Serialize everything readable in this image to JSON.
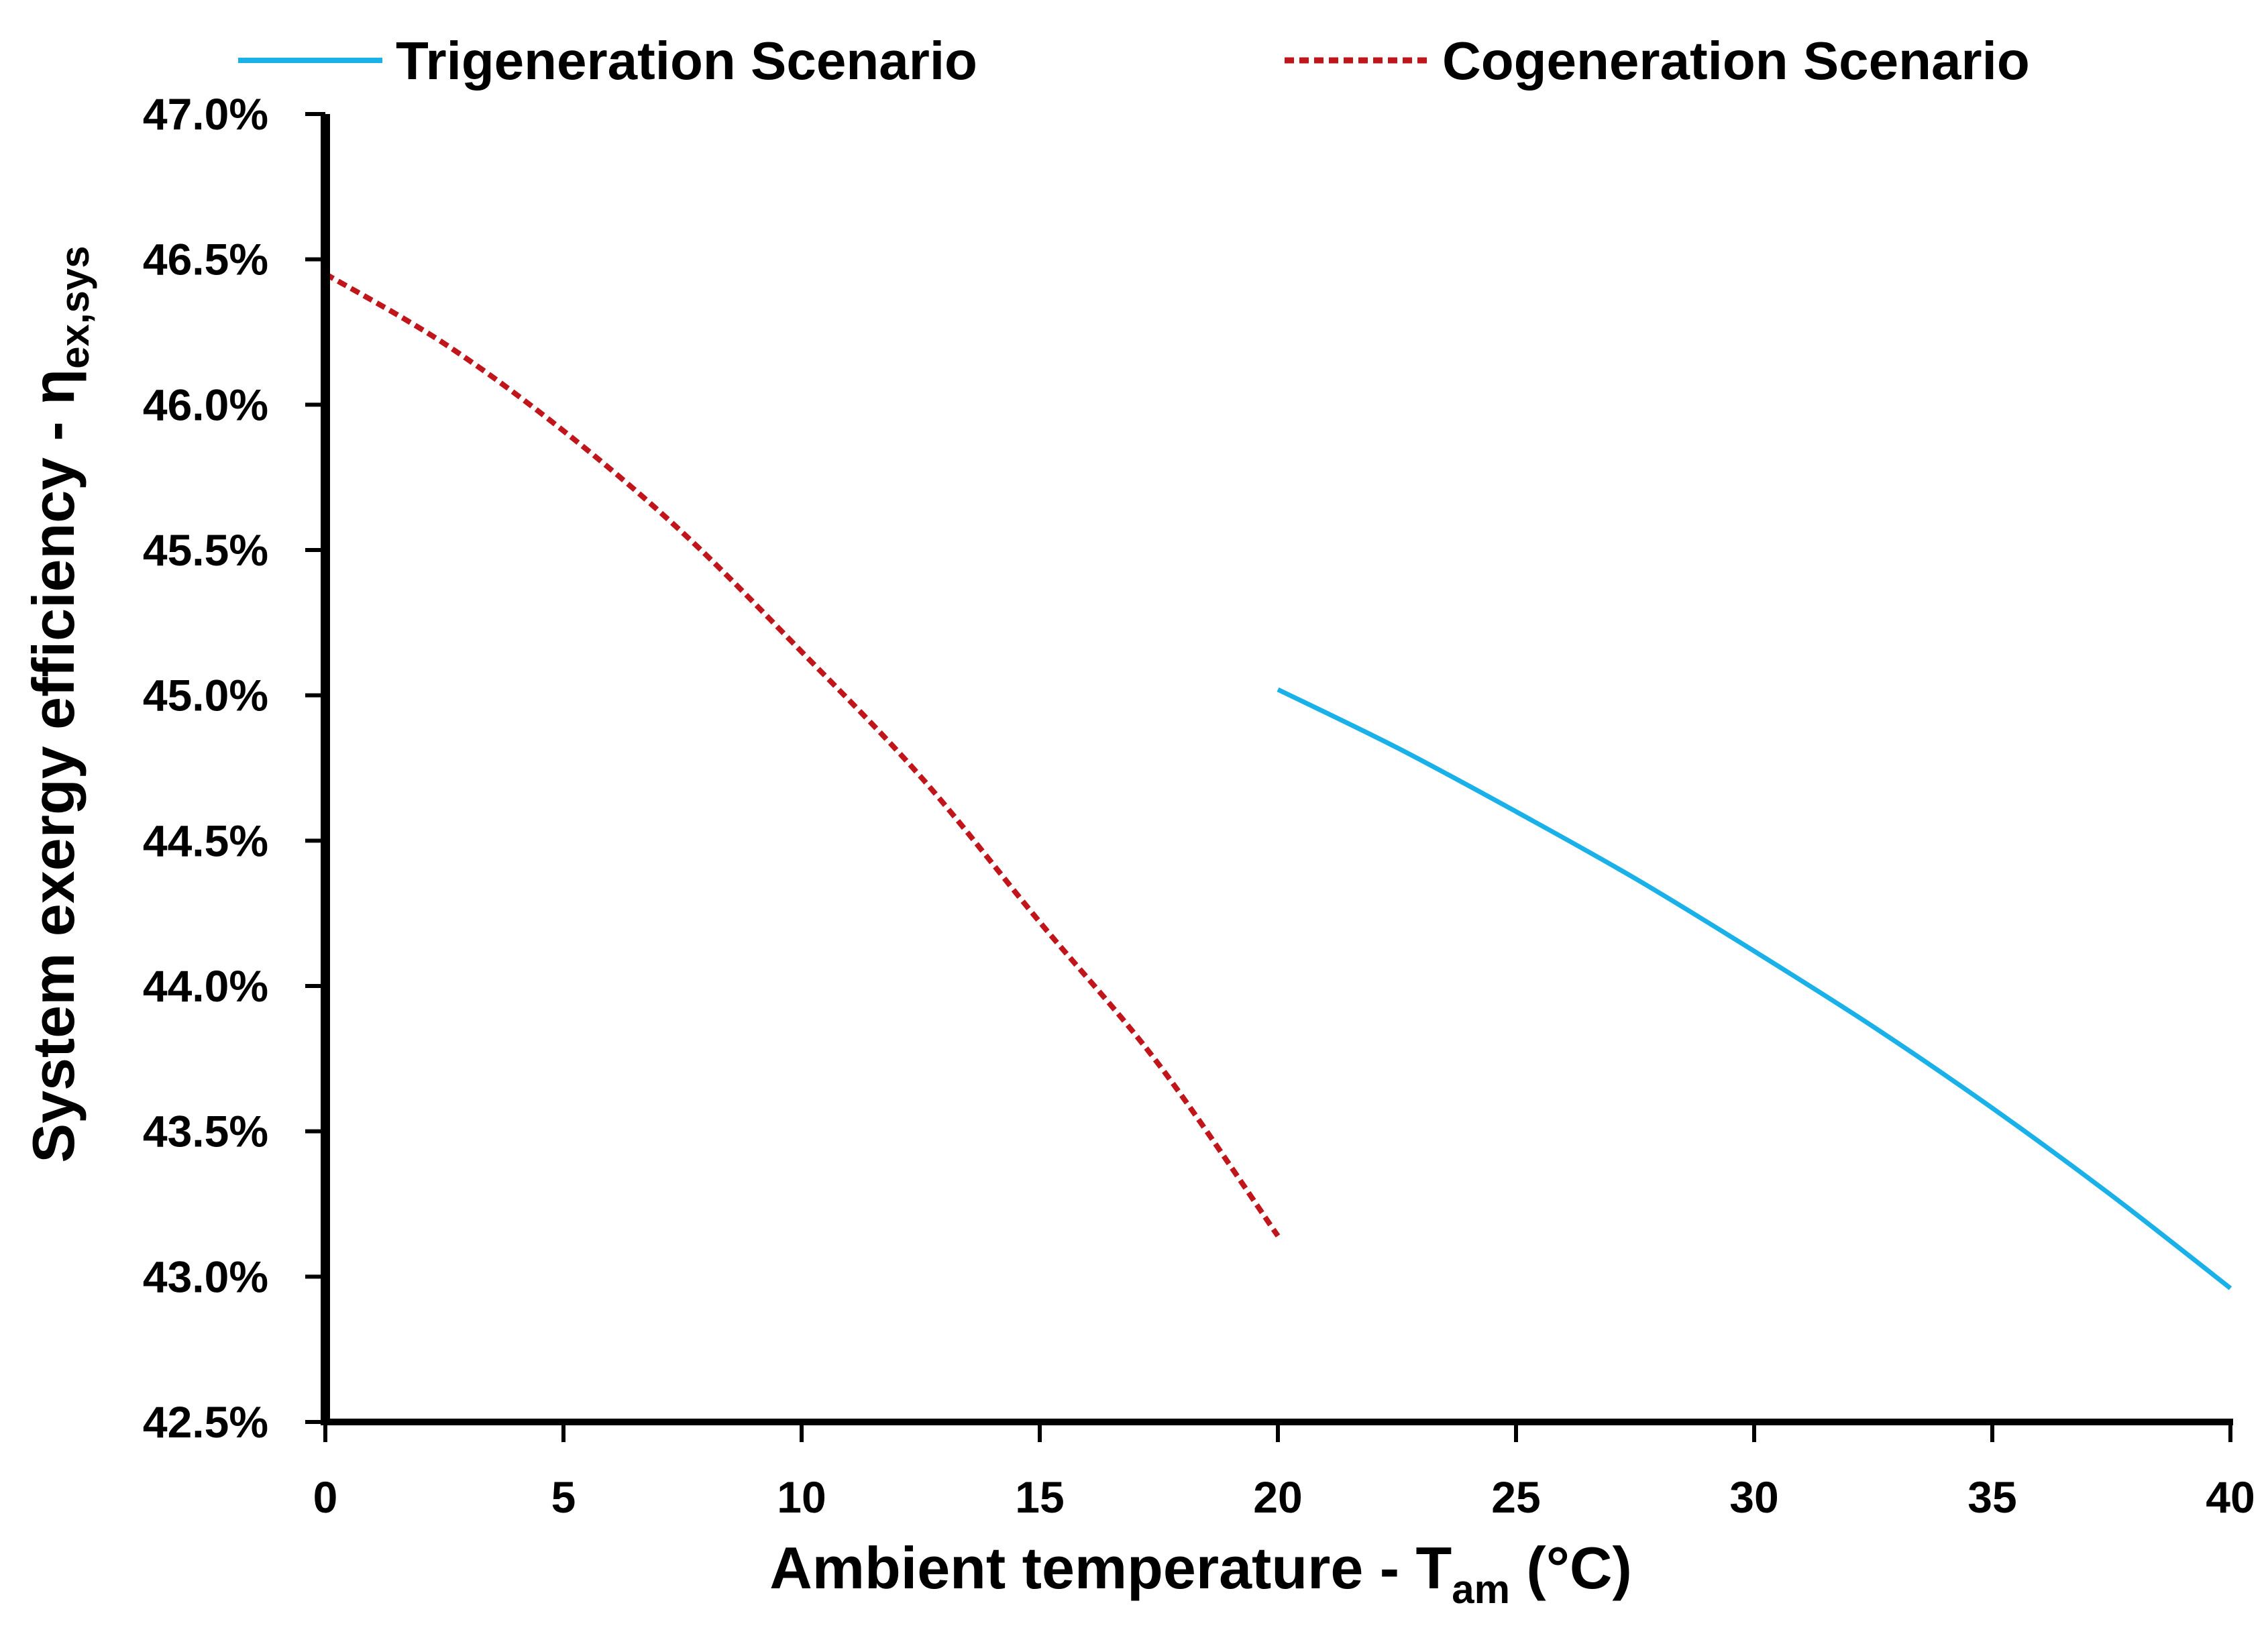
{
  "chart_data": {
    "type": "line",
    "title": "",
    "xlabel": {
      "main": "Ambient temperature - T",
      "sub": "am",
      "suffix": " (°C)"
    },
    "ylabel": {
      "main": "System exergy efficiency - η",
      "sub": "ex,sys"
    },
    "xlim": [
      0,
      40
    ],
    "ylim": [
      42.5,
      47.0
    ],
    "x_ticks": [
      0,
      5,
      10,
      15,
      20,
      25,
      30,
      35,
      40
    ],
    "x_tick_labels": [
      "0",
      "5",
      "10",
      "15",
      "20",
      "25",
      "30",
      "35",
      "40"
    ],
    "y_ticks": [
      42.5,
      43.0,
      43.5,
      44.0,
      44.5,
      45.0,
      45.5,
      46.0,
      46.5,
      47.0
    ],
    "y_tick_labels": [
      "42.5%",
      "43.0%",
      "43.5%",
      "44.0%",
      "44.5%",
      "45.0%",
      "45.5%",
      "46.0%",
      "46.5%",
      "47.0%"
    ],
    "grid": false,
    "legend_position": "top",
    "series": [
      {
        "name": "Trigeneration Scenario",
        "color": "#1AB0E8",
        "style": "solid",
        "x": [
          20,
          22.5,
          25,
          27.5,
          30,
          32.5,
          35,
          37.5,
          40
        ],
        "y": [
          45.02,
          44.82,
          44.6,
          44.37,
          44.12,
          43.86,
          43.58,
          43.28,
          42.96
        ]
      },
      {
        "name": "Cogeneration Scenario",
        "color": "#C0151B",
        "style": "dashed",
        "x": [
          0,
          2.5,
          5,
          7.5,
          10,
          12.5,
          15,
          17.5,
          20
        ],
        "y": [
          46.45,
          46.21,
          45.91,
          45.56,
          45.15,
          44.72,
          44.22,
          43.73,
          43.14
        ]
      }
    ]
  }
}
